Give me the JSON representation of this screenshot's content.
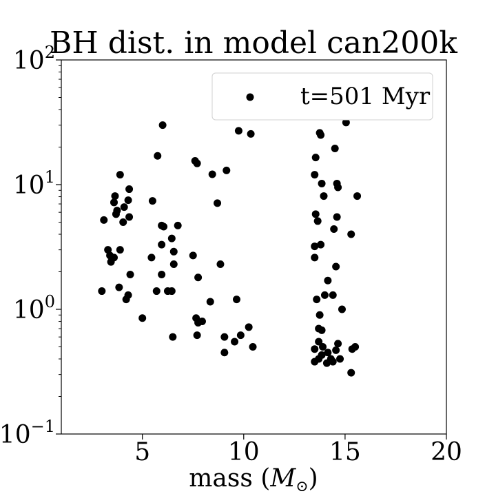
{
  "chart_data": {
    "type": "scatter",
    "title": "BH dist. in model can200k",
    "xlabel_text": "mass (",
    "xlabel_symbol": "M",
    "xlabel_sub": "⊙",
    "xlabel_close": ")",
    "ylabel": "",
    "xlim": [
      1.0,
      20.0
    ],
    "ylim": [
      0.1,
      100
    ],
    "yscale": "log",
    "grid": false,
    "legend_position": "top-right",
    "x_ticks": [
      5,
      10,
      15,
      20
    ],
    "y_ticks": [
      {
        "value": 0.1,
        "base": "10",
        "exp": "−1"
      },
      {
        "value": 1,
        "base": "10",
        "exp": "0"
      },
      {
        "value": 10,
        "base": "10",
        "exp": "1"
      },
      {
        "value": 100,
        "base": "10",
        "exp": "2"
      }
    ],
    "series": [
      {
        "name": "t=501 Myr",
        "color": "#000000",
        "points": [
          [
            3.0,
            1.4
          ],
          [
            3.1,
            5.2
          ],
          [
            3.3,
            3.0
          ],
          [
            3.4,
            2.7
          ],
          [
            3.45,
            2.4
          ],
          [
            3.6,
            2.6
          ],
          [
            3.6,
            7.2
          ],
          [
            3.65,
            8.1
          ],
          [
            3.7,
            5.8
          ],
          [
            3.75,
            6.2
          ],
          [
            3.85,
            1.5
          ],
          [
            3.9,
            12.0
          ],
          [
            3.9,
            3.0
          ],
          [
            4.05,
            5.0
          ],
          [
            4.1,
            6.6
          ],
          [
            4.2,
            1.2
          ],
          [
            4.3,
            1.3
          ],
          [
            4.3,
            7.5
          ],
          [
            4.35,
            5.5
          ],
          [
            4.35,
            9.2
          ],
          [
            4.4,
            1.9
          ],
          [
            5.0,
            0.85
          ],
          [
            5.5,
            7.4
          ],
          [
            5.45,
            2.6
          ],
          [
            5.75,
            17.0
          ],
          [
            5.7,
            1.4
          ],
          [
            5.95,
            4.7
          ],
          [
            5.95,
            3.3
          ],
          [
            5.95,
            1.9
          ],
          [
            6.0,
            30.0
          ],
          [
            6.05,
            4.6
          ],
          [
            6.25,
            1.4
          ],
          [
            6.45,
            1.4
          ],
          [
            6.45,
            3.7
          ],
          [
            6.5,
            0.6
          ],
          [
            6.55,
            2.9
          ],
          [
            6.55,
            2.3
          ],
          [
            6.75,
            4.7
          ],
          [
            7.5,
            2.7
          ],
          [
            7.6,
            15.5
          ],
          [
            7.7,
            14.8
          ],
          [
            7.65,
            0.85
          ],
          [
            7.7,
            0.62
          ],
          [
            7.75,
            0.78
          ],
          [
            7.75,
            1.8
          ],
          [
            7.95,
            0.8
          ],
          [
            8.35,
            1.15
          ],
          [
            8.45,
            12.1
          ],
          [
            8.7,
            7.1
          ],
          [
            8.85,
            2.3
          ],
          [
            9.05,
            0.45
          ],
          [
            9.05,
            0.6
          ],
          [
            9.15,
            13.0
          ],
          [
            9.55,
            0.55
          ],
          [
            9.65,
            1.2
          ],
          [
            9.75,
            27.0
          ],
          [
            9.85,
            0.62
          ],
          [
            10.25,
            0.72
          ],
          [
            10.35,
            25.5
          ],
          [
            10.45,
            0.5
          ],
          [
            13.5,
            0.48
          ],
          [
            13.5,
            0.38
          ],
          [
            13.5,
            12.0
          ],
          [
            13.5,
            2.6
          ],
          [
            13.5,
            3.2
          ],
          [
            13.55,
            16.5
          ],
          [
            13.55,
            5.8
          ],
          [
            13.6,
            1.2
          ],
          [
            13.65,
            5.1
          ],
          [
            13.7,
            0.55
          ],
          [
            13.7,
            0.7
          ],
          [
            13.7,
            0.4
          ],
          [
            13.75,
            26.0
          ],
          [
            13.75,
            0.9
          ],
          [
            13.8,
            25.0
          ],
          [
            13.8,
            3.3
          ],
          [
            13.85,
            0.43
          ],
          [
            13.85,
            10.2
          ],
          [
            13.85,
            0.68
          ],
          [
            13.9,
            0.5
          ],
          [
            13.95,
            8.1
          ],
          [
            14.0,
            1.3
          ],
          [
            14.1,
            0.37
          ],
          [
            14.15,
            0.45
          ],
          [
            14.15,
            1.7
          ],
          [
            14.3,
            0.4
          ],
          [
            14.4,
            0.38
          ],
          [
            14.4,
            1.3
          ],
          [
            14.45,
            4.4
          ],
          [
            14.5,
            19.5
          ],
          [
            14.55,
            0.47
          ],
          [
            14.55,
            2.2
          ],
          [
            14.6,
            10.2
          ],
          [
            14.6,
            5.5
          ],
          [
            14.65,
            9.5
          ],
          [
            14.65,
            0.53
          ],
          [
            14.75,
            0.4
          ],
          [
            14.85,
            1.0
          ],
          [
            15.05,
            31.5
          ],
          [
            15.3,
            0.31
          ],
          [
            15.3,
            4.0
          ],
          [
            15.35,
            0.48
          ],
          [
            15.5,
            0.5
          ],
          [
            15.6,
            8.1
          ]
        ]
      }
    ]
  }
}
